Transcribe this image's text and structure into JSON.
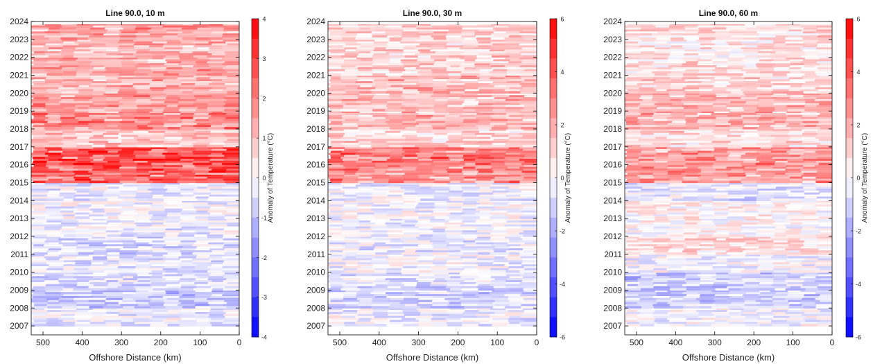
{
  "figure": {
    "colors": {
      "warm": "#ff0000",
      "cool": "#0000ff",
      "neutral": "#ffffff",
      "axis": "#000000"
    }
  },
  "chart_data": [
    {
      "type": "heatmap",
      "title": "Line 90.0, 10 m",
      "xlabel": "Offshore Distance (km)",
      "ylabel": "",
      "x_ticks": [
        500,
        400,
        300,
        200,
        100,
        0
      ],
      "y_ticks": [
        2007,
        2008,
        2009,
        2010,
        2011,
        2012,
        2013,
        2014,
        2015,
        2016,
        2017,
        2018,
        2019,
        2020,
        2021,
        2022,
        2023,
        2024
      ],
      "xlim": [
        530,
        0
      ],
      "ylim": [
        2006.5,
        2024
      ],
      "colorbar_label": "Anomaly of Temperature (°C)",
      "clim": [
        -4,
        4
      ],
      "colorbar_ticks": [
        -4,
        -3,
        -2,
        -1,
        0,
        1,
        2,
        3,
        4
      ],
      "colorbar_levels": 16,
      "annual_anomaly": [
        {
          "year": 2007,
          "value": -0.3
        },
        {
          "year": 2008,
          "value": -0.9
        },
        {
          "year": 2009,
          "value": -0.5
        },
        {
          "year": 2010,
          "value": -0.4
        },
        {
          "year": 2011,
          "value": -0.6
        },
        {
          "year": 2012,
          "value": -0.3
        },
        {
          "year": 2013,
          "value": -0.2
        },
        {
          "year": 2014,
          "value": -0.3
        },
        {
          "year": 2015,
          "value": 2.6
        },
        {
          "year": 2016,
          "value": 2.9
        },
        {
          "year": 2017,
          "value": 1.0
        },
        {
          "year": 2018,
          "value": 1.9
        },
        {
          "year": 2019,
          "value": 1.6
        },
        {
          "year": 2020,
          "value": 1.3
        },
        {
          "year": 2021,
          "value": 1.4
        },
        {
          "year": 2022,
          "value": 1.2
        },
        {
          "year": 2023,
          "value": 1.5
        }
      ]
    },
    {
      "type": "heatmap",
      "title": "Line 90.0, 30 m",
      "xlabel": "Offshore Distance (km)",
      "ylabel": "",
      "x_ticks": [
        500,
        400,
        300,
        200,
        100,
        0
      ],
      "y_ticks": [
        2007,
        2008,
        2009,
        2010,
        2011,
        2012,
        2013,
        2014,
        2015,
        2016,
        2017,
        2018,
        2019,
        2020,
        2021,
        2022,
        2023,
        2024
      ],
      "xlim": [
        530,
        0
      ],
      "ylim": [
        2006.5,
        2024
      ],
      "colorbar_label": "Anomaly of Temperature (°C)",
      "clim": [
        -6,
        6
      ],
      "colorbar_ticks": [
        -6,
        -4,
        -2,
        0,
        2,
        4,
        6
      ],
      "colorbar_levels": 16,
      "annual_anomaly": [
        {
          "year": 2007,
          "value": -0.4
        },
        {
          "year": 2008,
          "value": -1.0
        },
        {
          "year": 2009,
          "value": -0.8
        },
        {
          "year": 2010,
          "value": -0.3
        },
        {
          "year": 2011,
          "value": -0.5
        },
        {
          "year": 2012,
          "value": -0.3
        },
        {
          "year": 2013,
          "value": -0.2
        },
        {
          "year": 2014,
          "value": -0.4
        },
        {
          "year": 2015,
          "value": 2.8
        },
        {
          "year": 2016,
          "value": 3.3
        },
        {
          "year": 2017,
          "value": 1.0
        },
        {
          "year": 2018,
          "value": 1.8
        },
        {
          "year": 2019,
          "value": 1.6
        },
        {
          "year": 2020,
          "value": 1.7
        },
        {
          "year": 2021,
          "value": 1.2
        },
        {
          "year": 2022,
          "value": 1.1
        },
        {
          "year": 2023,
          "value": 1.3
        }
      ]
    },
    {
      "type": "heatmap",
      "title": "Line 90.0, 60 m",
      "xlabel": "Offshore Distance (km)",
      "ylabel": "",
      "x_ticks": [
        500,
        400,
        300,
        200,
        100,
        0
      ],
      "y_ticks": [
        2007,
        2008,
        2009,
        2010,
        2011,
        2012,
        2013,
        2014,
        2015,
        2016,
        2017,
        2018,
        2019,
        2020,
        2021,
        2022,
        2023,
        2024
      ],
      "xlim": [
        530,
        0
      ],
      "ylim": [
        2006.5,
        2024
      ],
      "colorbar_label": "Anomaly of Temperature (°C)",
      "clim": [
        -6,
        6
      ],
      "colorbar_ticks": [
        -6,
        -4,
        -2,
        0,
        2,
        4,
        6
      ],
      "colorbar_levels": 16,
      "annual_anomaly": [
        {
          "year": 2007,
          "value": -0.2
        },
        {
          "year": 2008,
          "value": -1.2
        },
        {
          "year": 2009,
          "value": -1.3
        },
        {
          "year": 2010,
          "value": -0.2
        },
        {
          "year": 2011,
          "value": 0.8
        },
        {
          "year": 2012,
          "value": 0.2
        },
        {
          "year": 2013,
          "value": 0.3
        },
        {
          "year": 2014,
          "value": -0.6
        },
        {
          "year": 2015,
          "value": 2.4
        },
        {
          "year": 2016,
          "value": 2.6
        },
        {
          "year": 2017,
          "value": 0.9
        },
        {
          "year": 2018,
          "value": 1.8
        },
        {
          "year": 2019,
          "value": 1.7
        },
        {
          "year": 2020,
          "value": 1.0
        },
        {
          "year": 2021,
          "value": 0.8
        },
        {
          "year": 2022,
          "value": 0.6
        },
        {
          "year": 2023,
          "value": 0.9
        }
      ]
    }
  ]
}
